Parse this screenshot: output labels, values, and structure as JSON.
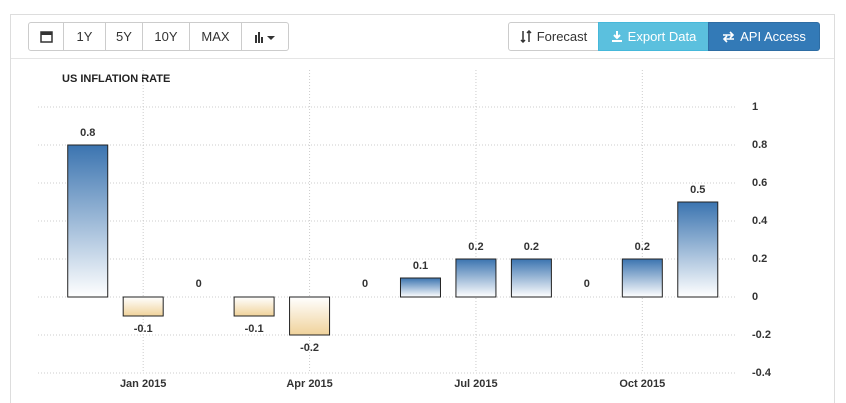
{
  "toolbar": {
    "ranges": [
      "1Y",
      "5Y",
      "10Y",
      "MAX"
    ],
    "actions": [
      "Forecast",
      "Export Data",
      "API Access"
    ]
  },
  "chart_data": {
    "type": "bar",
    "title": "US INFLATION RATE",
    "categories": [
      null,
      "Jan 2015",
      null,
      null,
      "Apr 2015",
      null,
      null,
      "Jul 2015",
      null,
      null,
      "Oct 2015",
      null
    ],
    "values": [
      0.8,
      -0.1,
      0,
      -0.1,
      -0.2,
      0,
      0.1,
      0.2,
      0.2,
      0,
      0.2,
      0.5
    ],
    "positive_color": "#3b74b0",
    "negative_color": "#f0d29a",
    "ylim": [
      -0.4,
      1
    ],
    "yticks": [
      -0.4,
      -0.2,
      0,
      0.2,
      0.4,
      0.6,
      0.8,
      1
    ],
    "grid": true,
    "y_axis_side": "right"
  }
}
